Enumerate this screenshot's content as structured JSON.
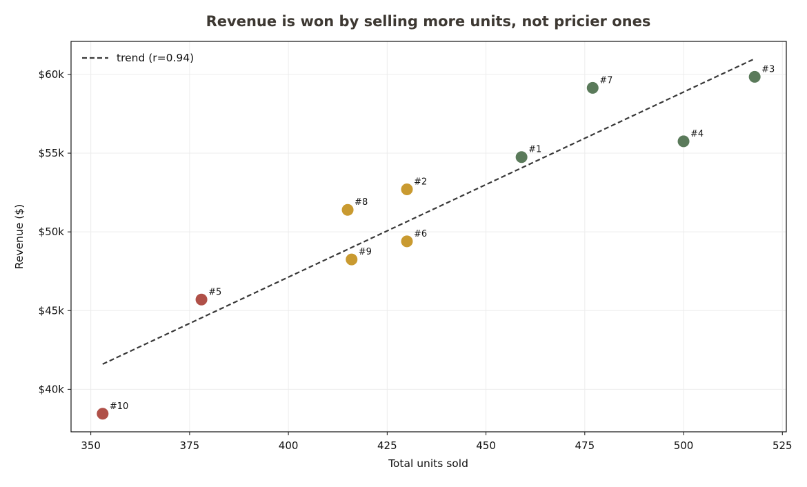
{
  "chart_data": {
    "type": "scatter",
    "title": "Revenue is won by selling more units, not pricier ones",
    "xlabel": "Total units sold",
    "ylabel": "Revenue ($)",
    "xlim": [
      345,
      526
    ],
    "ylim": [
      37300,
      62100
    ],
    "x_ticks": [
      350,
      375,
      400,
      425,
      450,
      475,
      500,
      525
    ],
    "y_ticks": [
      {
        "value": 40000,
        "label": "$40k"
      },
      {
        "value": 45000,
        "label": "$45k"
      },
      {
        "value": 50000,
        "label": "$50k"
      },
      {
        "value": 55000,
        "label": "$55k"
      },
      {
        "value": 60000,
        "label": "$60k"
      }
    ],
    "grid": true,
    "points": [
      {
        "label": "#1",
        "x": 459,
        "y": 54750,
        "color": "#5a7a5a"
      },
      {
        "label": "#2",
        "x": 430,
        "y": 52700,
        "color": "#c99a30"
      },
      {
        "label": "#3",
        "x": 518,
        "y": 59850,
        "color": "#5a7a5a"
      },
      {
        "label": "#4",
        "x": 500,
        "y": 55750,
        "color": "#5a7a5a"
      },
      {
        "label": "#5",
        "x": 378,
        "y": 45700,
        "color": "#b05048"
      },
      {
        "label": "#6",
        "x": 430,
        "y": 49400,
        "color": "#c99a30"
      },
      {
        "label": "#7",
        "x": 477,
        "y": 59150,
        "color": "#5a7a5a"
      },
      {
        "label": "#8",
        "x": 415,
        "y": 51400,
        "color": "#c99a30"
      },
      {
        "label": "#9",
        "x": 416,
        "y": 48250,
        "color": "#c99a30"
      },
      {
        "label": "#10",
        "x": 353,
        "y": 38450,
        "color": "#b05048"
      }
    ],
    "trend": {
      "label": "trend (r=0.94)",
      "start": {
        "x": 353,
        "y": 41600
      },
      "end": {
        "x": 518,
        "y": 61000
      },
      "color": "#383838"
    },
    "legend_position": "top-left"
  }
}
